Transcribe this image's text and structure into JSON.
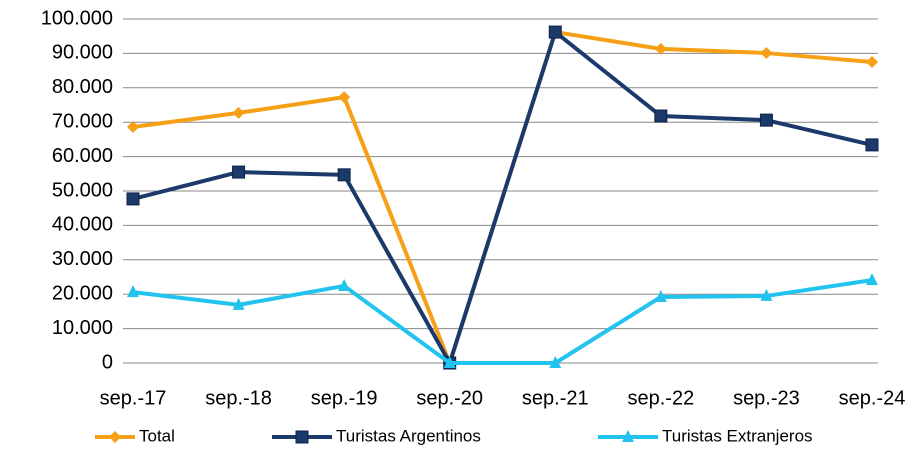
{
  "chart_data": {
    "type": "line",
    "categories": [
      "sep.-17",
      "sep.-18",
      "sep.-19",
      "sep.-20",
      "sep.-21",
      "sep.-22",
      "sep.-23",
      "sep.-24"
    ],
    "series": [
      {
        "name": "Total",
        "color": "#f5a016",
        "marker": "diamond",
        "values": [
          68600,
          72700,
          77300,
          0,
          96200,
          91300,
          90100,
          87500
        ]
      },
      {
        "name": "Turistas Argentinos",
        "color": "#1b3a6b",
        "marker": "square",
        "values": [
          47700,
          55500,
          54700,
          0,
          96200,
          71800,
          70600,
          63400
        ]
      },
      {
        "name": "Turistas Extranjeros",
        "color": "#22c3ef",
        "marker": "triangle",
        "values": [
          20600,
          16900,
          22400,
          0,
          0,
          19200,
          19500,
          24100
        ]
      }
    ],
    "ylim": [
      0,
      100000
    ],
    "yticks": [
      0,
      {
        "value": 10000,
        "label": "10.000"
      },
      {
        "value": 20000,
        "label": "20.000"
      },
      {
        "value": 30000,
        "label": "30.000"
      },
      {
        "value": 40000,
        "label": "40.000"
      },
      {
        "value": 50000,
        "label": "50.000"
      },
      {
        "value": 60000,
        "label": "60.000"
      },
      {
        "value": 70000,
        "label": "70.000"
      },
      {
        "value": 80000,
        "label": "80.000"
      },
      {
        "value": 90000,
        "label": "90.000"
      },
      {
        "value": 100000,
        "label": "100.000"
      }
    ],
    "grid": true,
    "legend": "bottom"
  }
}
